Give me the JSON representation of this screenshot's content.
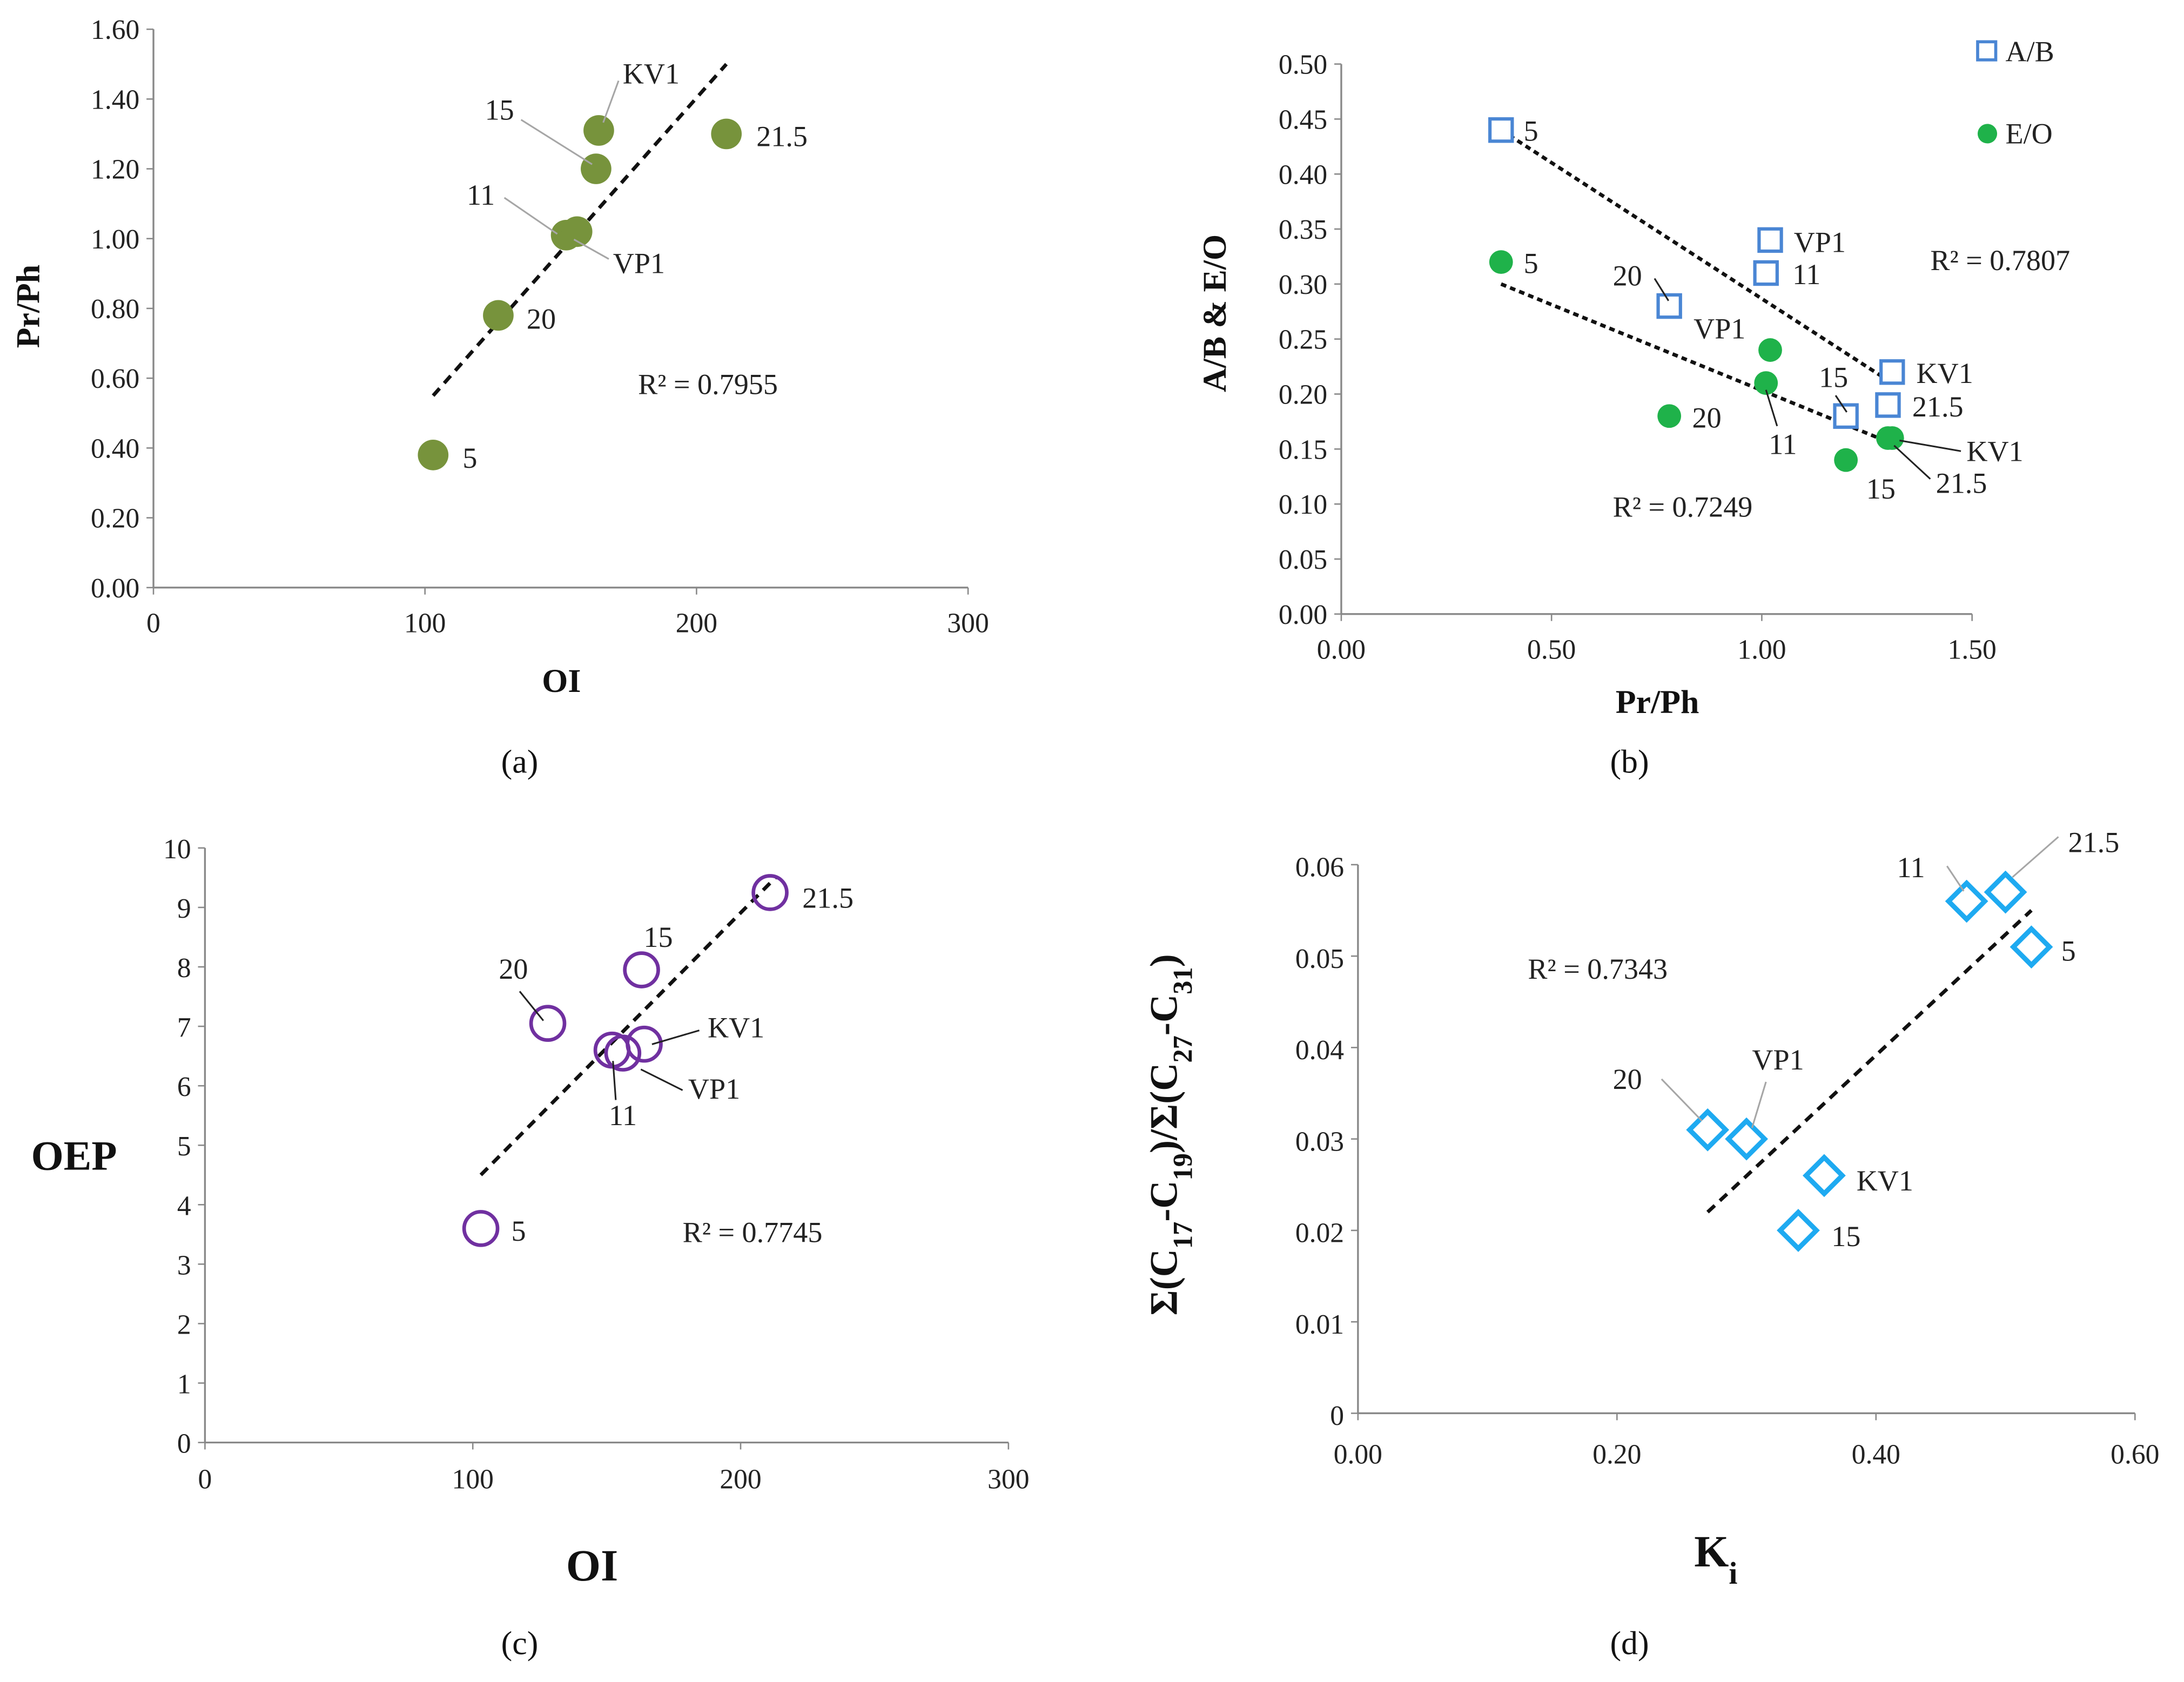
{
  "chart_data": [
    {
      "type": "scatter",
      "caption": "(a)",
      "xlabel": "OI",
      "ylabel": "Pr/Ph",
      "xlim": [
        0,
        300
      ],
      "ylim": [
        0,
        1.6
      ],
      "xticks": [
        {
          "v": 0,
          "t": "0"
        },
        {
          "v": 100,
          "t": "100"
        },
        {
          "v": 200,
          "t": "200"
        },
        {
          "v": 300,
          "t": "300"
        }
      ],
      "yticks": [
        {
          "v": 0,
          "t": "0.00"
        },
        {
          "v": 0.2,
          "t": "0.20"
        },
        {
          "v": 0.4,
          "t": "0.40"
        },
        {
          "v": 0.6,
          "t": "0.60"
        },
        {
          "v": 0.8,
          "t": "0.80"
        },
        {
          "v": 1.0,
          "t": "1.00"
        },
        {
          "v": 1.2,
          "t": "1.20"
        },
        {
          "v": 1.4,
          "t": "1.40"
        },
        {
          "v": 1.6,
          "t": "1.60"
        }
      ],
      "series": [
        {
          "name": "",
          "marker": "circle-filled",
          "color": "#77933c",
          "points": [
            {
              "label": "5",
              "x": 103,
              "y": 0.38
            },
            {
              "label": "20",
              "x": 127,
              "y": 0.78
            },
            {
              "label": "11",
              "x": 152,
              "y": 1.01
            },
            {
              "label": "VP1",
              "x": 156,
              "y": 1.02
            },
            {
              "label": "15",
              "x": 163,
              "y": 1.2
            },
            {
              "label": "KV1",
              "x": 164,
              "y": 1.31
            },
            {
              "label": "21.5",
              "x": 211,
              "y": 1.3
            }
          ]
        }
      ],
      "trendlines": [
        {
          "r2": "R² = 0.7955",
          "from": [
            103,
            0.55
          ],
          "to": [
            211,
            1.5
          ]
        }
      ]
    },
    {
      "type": "scatter",
      "caption": "(b)",
      "xlabel": "Pr/Ph",
      "ylabel": "A/B & E/O",
      "xlim": [
        0,
        1.5
      ],
      "ylim": [
        0,
        0.5
      ],
      "xticks": [
        {
          "v": 0,
          "t": "0.00"
        },
        {
          "v": 0.5,
          "t": "0.50"
        },
        {
          "v": 1.0,
          "t": "1.00"
        },
        {
          "v": 1.5,
          "t": "1.50"
        }
      ],
      "yticks": [
        {
          "v": 0,
          "t": "0.00"
        },
        {
          "v": 0.05,
          "t": "0.05"
        },
        {
          "v": 0.1,
          "t": "0.10"
        },
        {
          "v": 0.15,
          "t": "0.15"
        },
        {
          "v": 0.2,
          "t": "0.20"
        },
        {
          "v": 0.25,
          "t": "0.25"
        },
        {
          "v": 0.3,
          "t": "0.30"
        },
        {
          "v": 0.35,
          "t": "0.35"
        },
        {
          "v": 0.4,
          "t": "0.40"
        },
        {
          "v": 0.45,
          "t": "0.45"
        },
        {
          "v": 0.5,
          "t": "0.50"
        }
      ],
      "legend": "top-right",
      "series": [
        {
          "name": "A/B",
          "marker": "square-open",
          "color": "#4a86d4",
          "points": [
            {
              "label": "5",
              "x": 0.38,
              "y": 0.44
            },
            {
              "label": "VP1",
              "x": 1.02,
              "y": 0.34
            },
            {
              "label": "11",
              "x": 1.01,
              "y": 0.31
            },
            {
              "label": "20",
              "x": 0.78,
              "y": 0.28
            },
            {
              "label": "KV1",
              "x": 1.31,
              "y": 0.22
            },
            {
              "label": "21.5",
              "x": 1.3,
              "y": 0.19
            },
            {
              "label": "15",
              "x": 1.2,
              "y": 0.18
            }
          ]
        },
        {
          "name": "E/O",
          "marker": "circle-filled",
          "color": "#1fb24a",
          "points": [
            {
              "label": "5",
              "x": 0.38,
              "y": 0.32
            },
            {
              "label": "VP1",
              "x": 1.02,
              "y": 0.24
            },
            {
              "label": "11",
              "x": 1.01,
              "y": 0.21
            },
            {
              "label": "20",
              "x": 0.78,
              "y": 0.18
            },
            {
              "label": "KV1",
              "x": 1.31,
              "y": 0.16
            },
            {
              "label": "21.5",
              "x": 1.3,
              "y": 0.16
            },
            {
              "label": "15",
              "x": 1.2,
              "y": 0.14
            }
          ]
        }
      ],
      "trendlines": [
        {
          "r2": "R² = 0.7807",
          "from": [
            0.38,
            0.44
          ],
          "to": [
            1.31,
            0.21
          ]
        },
        {
          "r2": "R² = 0.7249",
          "from": [
            0.38,
            0.3
          ],
          "to": [
            1.31,
            0.155
          ]
        }
      ]
    },
    {
      "type": "scatter",
      "caption": "(c)",
      "xlabel": "OI",
      "ylabel": "OEP",
      "xlim": [
        0,
        300
      ],
      "ylim": [
        0,
        10
      ],
      "xticks": [
        {
          "v": 0,
          "t": "0"
        },
        {
          "v": 100,
          "t": "100"
        },
        {
          "v": 200,
          "t": "200"
        },
        {
          "v": 300,
          "t": "300"
        }
      ],
      "yticks": [
        {
          "v": 0,
          "t": "0"
        },
        {
          "v": 1,
          "t": "1"
        },
        {
          "v": 2,
          "t": "2"
        },
        {
          "v": 3,
          "t": "3"
        },
        {
          "v": 4,
          "t": "4"
        },
        {
          "v": 5,
          "t": "5"
        },
        {
          "v": 6,
          "t": "6"
        },
        {
          "v": 7,
          "t": "7"
        },
        {
          "v": 8,
          "t": "8"
        },
        {
          "v": 9,
          "t": "9"
        },
        {
          "v": 10,
          "t": "10"
        }
      ],
      "series": [
        {
          "name": "",
          "marker": "circle-open",
          "color": "#7030a0",
          "points": [
            {
              "label": "5",
              "x": 103,
              "y": 3.6
            },
            {
              "label": "20",
              "x": 128,
              "y": 7.05
            },
            {
              "label": "15",
              "x": 163,
              "y": 7.95
            },
            {
              "label": "KV1",
              "x": 164,
              "y": 6.7
            },
            {
              "label": "VP1",
              "x": 156,
              "y": 6.55
            },
            {
              "label": "11",
              "x": 152,
              "y": 6.6
            },
            {
              "label": "21.5",
              "x": 211,
              "y": 9.25
            }
          ]
        }
      ],
      "trendlines": [
        {
          "r2": "R² = 0.7745",
          "from": [
            103,
            4.5
          ],
          "to": [
            213,
            9.5
          ]
        }
      ]
    },
    {
      "type": "scatter",
      "caption": "(d)",
      "xlabel_parts": [
        {
          "t": "K"
        },
        {
          "t": "i",
          "sub": true
        }
      ],
      "ylabel_parts": [
        {
          "t": "Σ(C"
        },
        {
          "t": "17",
          "sub": true
        },
        {
          "t": "-C"
        },
        {
          "t": "19",
          "sub": true
        },
        {
          "t": ")/Σ(C"
        },
        {
          "t": "27",
          "sub": true
        },
        {
          "t": "-C"
        },
        {
          "t": "31",
          "sub": true
        },
        {
          "t": ")"
        }
      ],
      "xlim": [
        0,
        0.6
      ],
      "ylim": [
        0,
        0.06
      ],
      "xticks": [
        {
          "v": 0,
          "t": "0.00"
        },
        {
          "v": 0.2,
          "t": "0.20"
        },
        {
          "v": 0.4,
          "t": "0.40"
        },
        {
          "v": 0.6,
          "t": "0.60"
        }
      ],
      "yticks": [
        {
          "v": 0,
          "t": "0"
        },
        {
          "v": 0.01,
          "t": "0.01"
        },
        {
          "v": 0.02,
          "t": "0.02"
        },
        {
          "v": 0.03,
          "t": "0.03"
        },
        {
          "v": 0.04,
          "t": "0.04"
        },
        {
          "v": 0.05,
          "t": "0.05"
        },
        {
          "v": 0.06,
          "t": "0.06"
        }
      ],
      "series": [
        {
          "name": "",
          "marker": "diamond-open",
          "color": "#1eaaf1",
          "points": [
            {
              "label": "11",
              "x": 0.47,
              "y": 0.056
            },
            {
              "label": "21.5",
              "x": 0.5,
              "y": 0.057
            },
            {
              "label": "5",
              "x": 0.52,
              "y": 0.051
            },
            {
              "label": "20",
              "x": 0.27,
              "y": 0.031
            },
            {
              "label": "VP1",
              "x": 0.3,
              "y": 0.03
            },
            {
              "label": "KV1",
              "x": 0.36,
              "y": 0.026
            },
            {
              "label": "15",
              "x": 0.34,
              "y": 0.02
            }
          ]
        }
      ],
      "trendlines": [
        {
          "r2": "R² = 0.7343",
          "from": [
            0.27,
            0.022
          ],
          "to": [
            0.52,
            0.055
          ]
        }
      ]
    }
  ]
}
